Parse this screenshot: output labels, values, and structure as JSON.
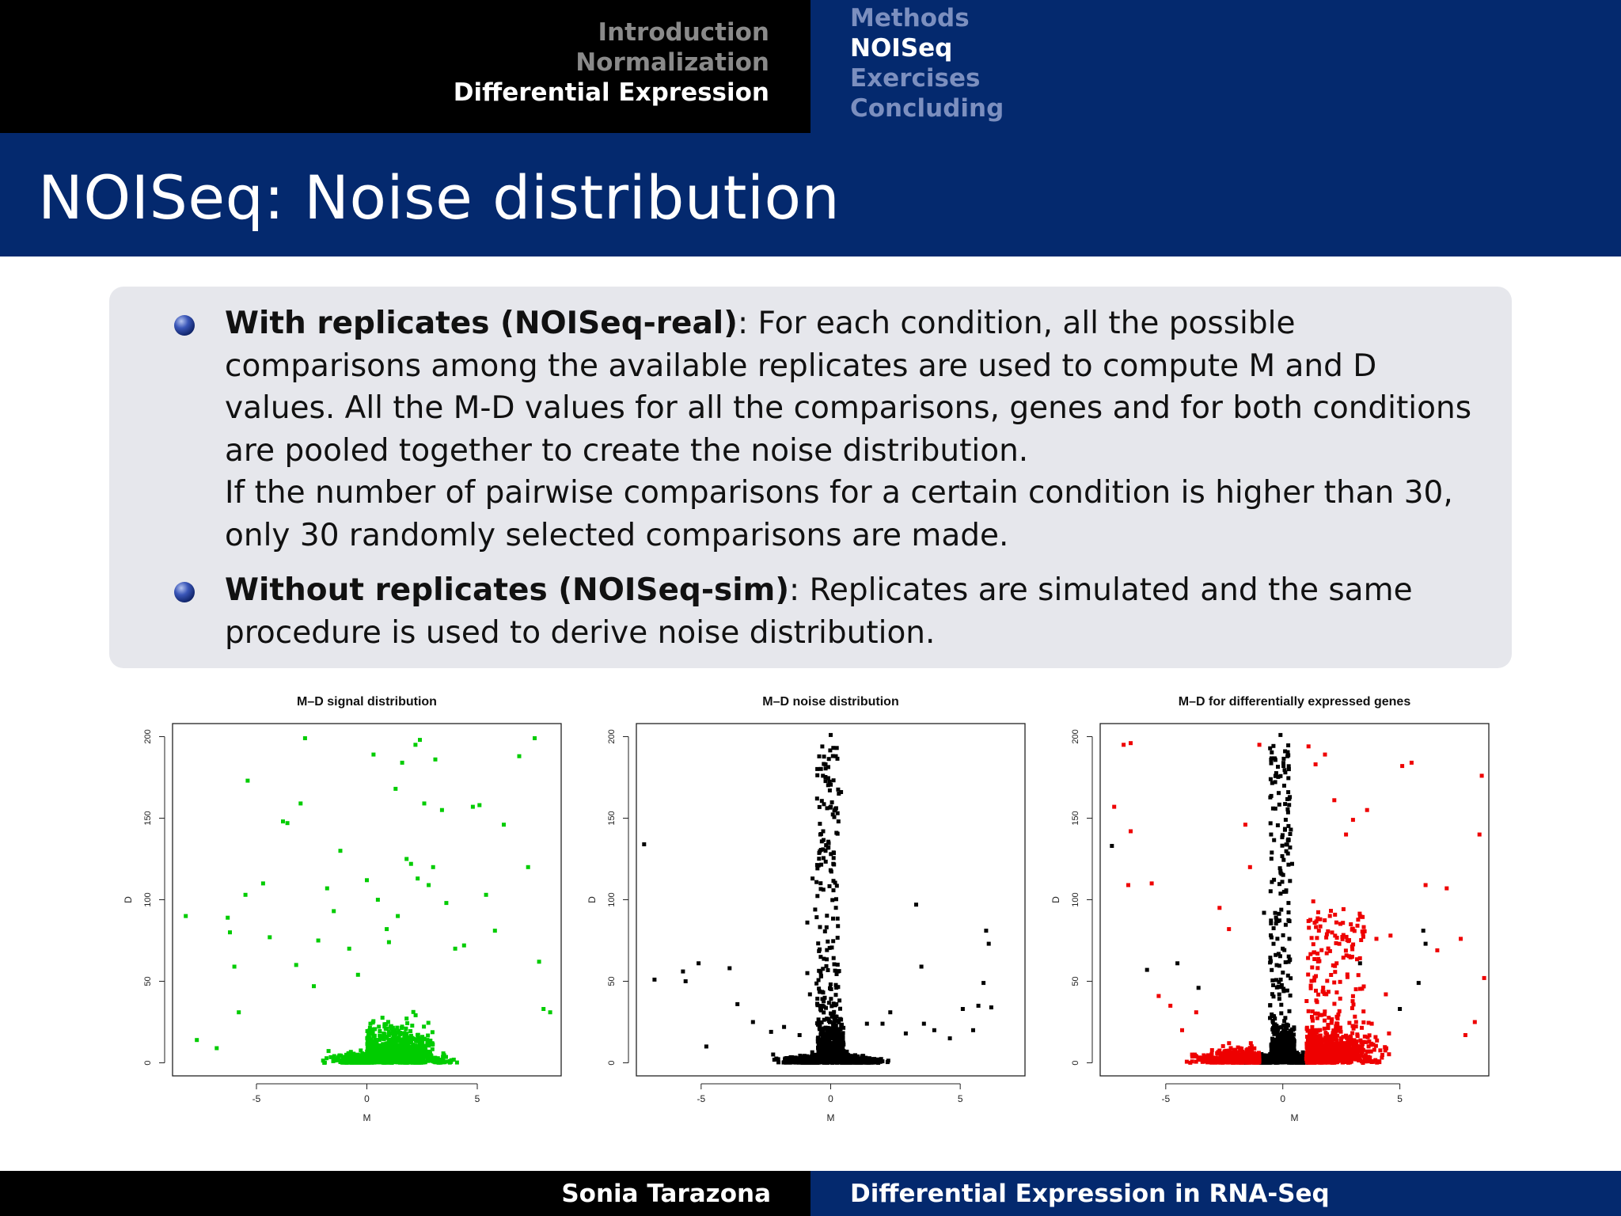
{
  "header": {
    "sections": [
      "Introduction",
      "Normalization",
      "Differential Expression"
    ],
    "active_section": 2,
    "subsections": [
      "Methods",
      "NOISeq",
      "Exercises",
      "Concluding"
    ],
    "active_subsection": 1
  },
  "slide": {
    "title": "NOISeq: Noise distribution"
  },
  "block": {
    "bullet1": {
      "bold": "With replicates (NOISeq-real)",
      "text": ": For each condition, all the possible comparisons among the available replicates are used to compute M and D values. All the M-D values for all the comparisons, genes and for both conditions are pooled together to create the noise distribution.",
      "text2": "If the number of pairwise comparisons for a certain condition is higher than 30, only 30 randomly selected comparisons are made."
    },
    "bullet2": {
      "bold": "Without replicates (NOISeq-sim)",
      "text": ": Replicates are simulated and the same procedure is used to derive noise distribution."
    }
  },
  "colors": {
    "header_blue": "#04296e",
    "block_bg": "#e6e7ec",
    "signal": "#00cc00",
    "noise": "#000000",
    "de_genes": "#ee0000"
  },
  "chart_data": [
    {
      "type": "scatter",
      "title": "M–D signal distribution",
      "xlabel": "M",
      "ylabel": "D",
      "xticks": [
        -5,
        0,
        5
      ],
      "yticks": [
        0,
        50,
        100,
        150,
        200
      ],
      "xlim": [
        -8.8,
        8.8
      ],
      "ylim": [
        -8,
        208
      ],
      "color": "#00cc00",
      "points": [
        [
          -8.2,
          90
        ],
        [
          -7.7,
          14
        ],
        [
          -6.8,
          9
        ],
        [
          -6.3,
          89
        ],
        [
          -6.2,
          80
        ],
        [
          -6.0,
          59
        ],
        [
          -5.8,
          31
        ],
        [
          -5.4,
          173
        ],
        [
          -5.5,
          103
        ],
        [
          -4.7,
          110
        ],
        [
          -4.4,
          77
        ],
        [
          -3.8,
          148
        ],
        [
          -3.6,
          147
        ],
        [
          -3.2,
          60
        ],
        [
          -3.0,
          159
        ],
        [
          -2.8,
          199
        ],
        [
          -2.4,
          47
        ],
        [
          -2.2,
          75
        ],
        [
          -1.8,
          107
        ],
        [
          -1.5,
          93
        ],
        [
          -1.2,
          130
        ],
        [
          -0.8,
          70
        ],
        [
          -0.4,
          54
        ],
        [
          0.0,
          112
        ],
        [
          0.3,
          189
        ],
        [
          0.5,
          100
        ],
        [
          0.9,
          82
        ],
        [
          1.0,
          74
        ],
        [
          1.4,
          90
        ],
        [
          1.3,
          168
        ],
        [
          1.6,
          184
        ],
        [
          1.8,
          125
        ],
        [
          2.0,
          122
        ],
        [
          2.2,
          195
        ],
        [
          2.4,
          198
        ],
        [
          2.3,
          113
        ],
        [
          2.6,
          159
        ],
        [
          2.8,
          109
        ],
        [
          3.0,
          120
        ],
        [
          3.1,
          186
        ],
        [
          3.4,
          155
        ],
        [
          3.6,
          98
        ],
        [
          4.0,
          70
        ],
        [
          4.4,
          72
        ],
        [
          4.8,
          157
        ],
        [
          5.1,
          158
        ],
        [
          5.4,
          103
        ],
        [
          5.8,
          81
        ],
        [
          6.2,
          146
        ],
        [
          6.9,
          188
        ],
        [
          7.3,
          120
        ],
        [
          7.6,
          199
        ],
        [
          7.8,
          62
        ],
        [
          8.0,
          33
        ],
        [
          8.3,
          31
        ]
      ]
    },
    {
      "type": "scatter",
      "title": "M–D noise distribution",
      "xlabel": "M",
      "ylabel": "D",
      "xticks": [
        -5,
        0,
        5
      ],
      "yticks": [
        0,
        50,
        100,
        150,
        200
      ],
      "xlim": [
        -7.5,
        7.5
      ],
      "ylim": [
        -8,
        208
      ],
      "color": "#000000",
      "points": [
        [
          -7.2,
          134
        ],
        [
          -6.8,
          51
        ],
        [
          -5.7,
          56
        ],
        [
          -5.6,
          50
        ],
        [
          -5.1,
          61
        ],
        [
          -4.8,
          10
        ],
        [
          -3.9,
          58
        ],
        [
          -3.6,
          36
        ],
        [
          -0.9,
          86
        ],
        [
          -0.7,
          113
        ],
        [
          -0.9,
          55
        ],
        [
          -0.8,
          42
        ],
        [
          -0.6,
          94
        ],
        [
          -0.4,
          140
        ],
        [
          -0.3,
          176
        ],
        [
          -0.2,
          183
        ],
        [
          0.0,
          201
        ],
        [
          0.2,
          188
        ],
        [
          0.4,
          166
        ],
        [
          0.3,
          148
        ],
        [
          0.1,
          122
        ],
        [
          -0.2,
          130
        ],
        [
          -2.3,
          19
        ],
        [
          -1.8,
          22
        ],
        [
          -1.2,
          17
        ],
        [
          1.4,
          24
        ],
        [
          2.0,
          24
        ],
        [
          2.3,
          31
        ],
        [
          2.9,
          18
        ],
        [
          3.3,
          97
        ],
        [
          3.5,
          59
        ],
        [
          3.6,
          24
        ],
        [
          4.0,
          20
        ],
        [
          4.6,
          15
        ],
        [
          5.1,
          33
        ],
        [
          5.7,
          35
        ],
        [
          5.9,
          49
        ],
        [
          6.0,
          81
        ],
        [
          6.1,
          73
        ],
        [
          6.2,
          34
        ],
        [
          5.5,
          20
        ],
        [
          -3.0,
          25
        ]
      ]
    },
    {
      "type": "scatter",
      "title": "M–D for differentially expressed genes",
      "xlabel": "M",
      "ylabel": "D",
      "xticks": [
        -5,
        0,
        5
      ],
      "yticks": [
        0,
        50,
        100,
        150,
        200
      ],
      "xlim": [
        -7.8,
        8.8
      ],
      "ylim": [
        -8,
        208
      ],
      "series": [
        {
          "color": "#000000",
          "points": [
            [
              -7.3,
              133
            ],
            [
              -5.8,
              57
            ],
            [
              -4.5,
              61
            ],
            [
              -3.6,
              46
            ],
            [
              -0.8,
              92
            ],
            [
              -0.5,
              140
            ],
            [
              -0.3,
              176
            ],
            [
              -0.1,
              201
            ],
            [
              0.2,
              188
            ],
            [
              0.4,
              122
            ],
            [
              3.3,
              61
            ],
            [
              6.1,
              73
            ],
            [
              6.0,
              81
            ],
            [
              5.8,
              49
            ],
            [
              5.0,
              33
            ]
          ]
        },
        {
          "color": "#ee0000",
          "points": [
            [
              -6.8,
              195
            ],
            [
              -6.5,
              196
            ],
            [
              -7.2,
              157
            ],
            [
              -6.5,
              142
            ],
            [
              -6.6,
              109
            ],
            [
              -5.6,
              110
            ],
            [
              -5.3,
              41
            ],
            [
              -4.8,
              35
            ],
            [
              -2.7,
              95
            ],
            [
              -2.3,
              82
            ],
            [
              -1.6,
              146
            ],
            [
              -1.4,
              120
            ],
            [
              -1.0,
              195
            ],
            [
              1.1,
              194
            ],
            [
              1.4,
              183
            ],
            [
              1.8,
              189
            ],
            [
              2.2,
              161
            ],
            [
              1.3,
              99
            ],
            [
              1.6,
              88
            ],
            [
              2.7,
              140
            ],
            [
              3.0,
              149
            ],
            [
              3.6,
              155
            ],
            [
              3.3,
              90
            ],
            [
              4.0,
              76
            ],
            [
              4.6,
              78
            ],
            [
              5.1,
              182
            ],
            [
              5.5,
              184
            ],
            [
              6.1,
              109
            ],
            [
              6.6,
              69
            ],
            [
              7.0,
              107
            ],
            [
              7.6,
              76
            ],
            [
              8.4,
              140
            ],
            [
              8.5,
              176
            ],
            [
              8.6,
              52
            ],
            [
              8.2,
              25
            ],
            [
              7.8,
              17
            ],
            [
              -3.7,
              31
            ],
            [
              -4.3,
              20
            ],
            [
              2.3,
              61
            ],
            [
              3.8,
              24
            ],
            [
              4.4,
              42
            ]
          ]
        }
      ]
    }
  ],
  "footer": {
    "author": "Sonia Tarazona",
    "talk_title": "Differential Expression in RNA-Seq"
  }
}
